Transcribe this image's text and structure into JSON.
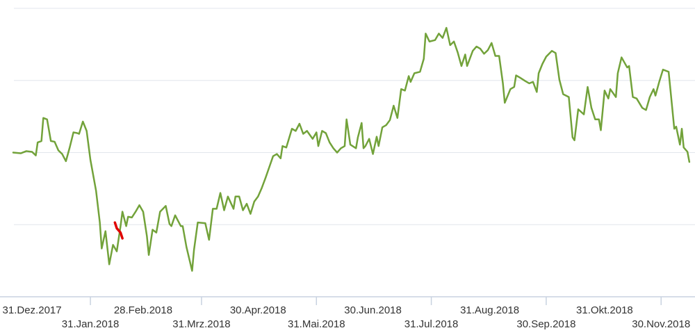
{
  "chart_data": {
    "type": "line",
    "grid": true,
    "xlim": [
      "2017-12-14",
      "2018-12-18"
    ],
    "xticks": [
      {
        "value": "2017-12-31",
        "label": "31.Dez.2017"
      },
      {
        "value": "2018-01-31",
        "label": "31.Jan.2018"
      },
      {
        "value": "2018-02-28",
        "label": "28.Feb.2018"
      },
      {
        "value": "2018-03-31",
        "label": "31.Mrz.2018"
      },
      {
        "value": "2018-04-30",
        "label": "30.Apr.2018"
      },
      {
        "value": "2018-05-31",
        "label": "31.Mai.2018"
      },
      {
        "value": "2018-06-30",
        "label": "30.Jun.2018"
      },
      {
        "value": "2018-07-31",
        "label": "31.Jul.2018"
      },
      {
        "value": "2018-08-31",
        "label": "31.Aug.2018"
      },
      {
        "value": "2018-09-30",
        "label": "30.Sep.2018"
      },
      {
        "value": "2018-10-31",
        "label": "31.Okt.2018"
      },
      {
        "value": "2018-11-30",
        "label": "30.Nov.2018"
      }
    ],
    "ylim": [
      0,
      4
    ],
    "yticks": [
      0,
      1,
      2,
      3,
      4
    ],
    "series": [
      {
        "color": "#72a23a",
        "x": [
          "2017-12-21",
          "2017-12-25",
          "2017-12-28",
          "2017-12-31",
          "2018-01-02",
          "2018-01-03",
          "2018-01-05",
          "2018-01-06",
          "2018-01-08",
          "2018-01-10",
          "2018-01-12",
          "2018-01-14",
          "2018-01-16",
          "2018-01-18",
          "2018-01-20",
          "2018-01-22",
          "2018-01-24",
          "2018-01-25",
          "2018-01-27",
          "2018-01-29",
          "2018-01-31",
          "2018-02-03",
          "2018-02-05",
          "2018-02-06",
          "2018-02-08",
          "2018-02-10",
          "2018-02-12",
          "2018-02-14",
          "2018-02-16",
          "2018-02-17",
          "2018-02-19",
          "2018-02-20",
          "2018-02-22",
          "2018-02-24",
          "2018-02-26",
          "2018-02-28",
          "2018-03-02",
          "2018-03-03",
          "2018-03-05",
          "2018-03-07",
          "2018-03-09",
          "2018-03-12",
          "2018-03-14",
          "2018-03-15",
          "2018-03-17",
          "2018-03-20",
          "2018-03-21",
          "2018-03-23",
          "2018-03-26",
          "2018-03-27",
          "2018-03-29",
          "2018-04-02",
          "2018-04-04",
          "2018-04-06",
          "2018-04-08",
          "2018-04-10",
          "2018-04-12",
          "2018-04-14",
          "2018-04-17",
          "2018-04-18",
          "2018-04-20",
          "2018-04-22",
          "2018-04-24",
          "2018-04-26",
          "2018-04-28",
          "2018-04-30",
          "2018-05-02",
          "2018-05-04",
          "2018-05-06",
          "2018-05-08",
          "2018-05-10",
          "2018-05-12",
          "2018-05-13",
          "2018-05-15",
          "2018-05-18",
          "2018-05-20",
          "2018-05-22",
          "2018-05-24",
          "2018-05-26",
          "2018-05-29",
          "2018-05-31",
          "2018-06-01",
          "2018-06-03",
          "2018-06-05",
          "2018-06-07",
          "2018-06-09",
          "2018-06-11",
          "2018-06-13",
          "2018-06-15",
          "2018-06-16",
          "2018-06-18",
          "2018-06-21",
          "2018-06-22",
          "2018-06-24",
          "2018-06-25",
          "2018-06-26",
          "2018-06-28",
          "2018-06-30",
          "2018-07-02",
          "2018-07-03",
          "2018-07-05",
          "2018-07-07",
          "2018-07-09",
          "2018-07-11",
          "2018-07-13",
          "2018-07-15",
          "2018-07-17",
          "2018-07-19",
          "2018-07-20",
          "2018-07-22",
          "2018-07-25",
          "2018-07-27",
          "2018-07-28",
          "2018-07-30",
          "2018-08-02",
          "2018-08-04",
          "2018-08-06",
          "2018-08-08",
          "2018-08-10",
          "2018-08-12",
          "2018-08-14",
          "2018-08-16",
          "2018-08-18",
          "2018-08-19",
          "2018-08-22",
          "2018-08-24",
          "2018-08-26",
          "2018-08-28",
          "2018-08-30",
          "2018-09-01",
          "2018-09-03",
          "2018-09-05",
          "2018-09-07",
          "2018-09-08",
          "2018-09-11",
          "2018-09-13",
          "2018-09-14",
          "2018-09-16",
          "2018-09-19",
          "2018-09-21",
          "2018-09-23",
          "2018-09-25",
          "2018-09-26",
          "2018-09-28",
          "2018-09-30",
          "2018-10-03",
          "2018-10-05",
          "2018-10-07",
          "2018-10-09",
          "2018-10-12",
          "2018-10-14",
          "2018-10-15",
          "2018-10-17",
          "2018-10-20",
          "2018-10-22",
          "2018-10-24",
          "2018-10-26",
          "2018-10-28",
          "2018-10-29",
          "2018-10-31",
          "2018-11-02",
          "2018-11-03",
          "2018-11-06",
          "2018-11-07",
          "2018-11-09",
          "2018-11-12",
          "2018-11-13",
          "2018-11-15",
          "2018-11-17",
          "2018-11-20",
          "2018-11-22",
          "2018-11-24",
          "2018-11-26",
          "2018-11-27",
          "2018-11-29",
          "2018-12-01",
          "2018-12-04",
          "2018-12-05",
          "2018-12-07",
          "2018-12-08",
          "2018-12-10",
          "2018-12-11",
          "2018-12-12",
          "2018-12-14",
          "2018-12-15"
        ],
        "values": [
          2.0,
          1.99,
          2.02,
          2.01,
          1.96,
          2.14,
          2.16,
          2.48,
          2.46,
          2.16,
          2.15,
          2.03,
          1.98,
          1.88,
          2.07,
          2.28,
          2.27,
          2.26,
          2.43,
          2.3,
          1.9,
          1.47,
          1.03,
          0.67,
          0.91,
          0.45,
          0.72,
          0.63,
          0.98,
          1.18,
          0.98,
          1.11,
          1.1,
          1.18,
          1.27,
          1.18,
          0.84,
          0.58,
          0.93,
          0.89,
          1.18,
          1.26,
          1.01,
          0.98,
          1.13,
          0.98,
          0.98,
          0.69,
          0.36,
          0.65,
          1.03,
          1.02,
          0.79,
          1.22,
          1.22,
          1.44,
          1.2,
          1.39,
          1.22,
          1.39,
          1.39,
          1.2,
          1.29,
          1.15,
          1.32,
          1.39,
          1.51,
          1.65,
          1.8,
          1.95,
          1.98,
          1.92,
          2.09,
          2.07,
          2.33,
          2.3,
          2.4,
          2.26,
          2.3,
          2.19,
          2.28,
          2.09,
          2.3,
          2.27,
          2.14,
          2.06,
          2.0,
          2.06,
          2.09,
          2.46,
          2.11,
          2.06,
          2.21,
          2.41,
          2.06,
          2.09,
          2.19,
          1.98,
          2.22,
          2.09,
          2.35,
          2.38,
          2.45,
          2.65,
          2.48,
          2.88,
          2.86,
          3.06,
          2.98,
          3.1,
          3.12,
          3.3,
          3.65,
          3.54,
          3.56,
          3.65,
          3.59,
          3.73,
          3.49,
          3.54,
          3.39,
          3.2,
          3.36,
          3.2,
          3.41,
          3.47,
          3.44,
          3.37,
          3.42,
          3.52,
          3.34,
          3.34,
          2.96,
          2.69,
          2.88,
          2.91,
          3.07,
          3.04,
          2.99,
          2.96,
          2.98,
          2.84,
          3.1,
          3.23,
          3.33,
          3.41,
          3.38,
          3.01,
          2.81,
          2.77,
          2.21,
          2.17,
          2.6,
          2.53,
          2.91,
          2.62,
          2.46,
          2.46,
          2.31,
          2.86,
          2.75,
          2.88,
          2.77,
          3.1,
          3.32,
          3.18,
          3.2,
          2.77,
          2.75,
          2.62,
          2.59,
          2.77,
          2.88,
          2.79,
          2.98,
          3.15,
          3.12,
          2.86,
          2.33,
          2.36,
          2.11,
          2.33,
          2.07,
          2.01,
          1.87
        ]
      },
      {
        "color": "#e00000",
        "x": [
          "2018-02-13",
          "2018-02-14",
          "2018-02-16",
          "2018-02-17"
        ],
        "values": [
          1.03,
          0.95,
          0.89,
          0.81
        ]
      }
    ]
  }
}
